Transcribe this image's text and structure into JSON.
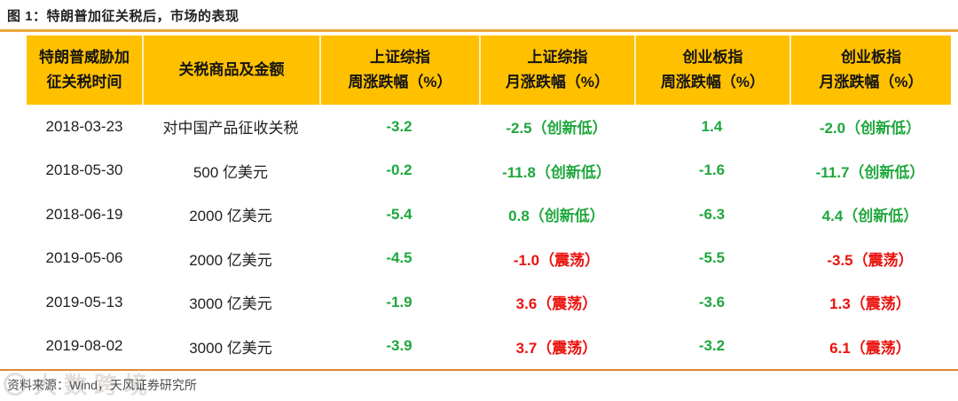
{
  "title": "图 1：特朗普加征关税后，市场的表现",
  "colors": {
    "header_bg": "#FFC000",
    "top_rule": "#E9A838",
    "bottom_rule": "#DE8A33",
    "green": "#1FA73C",
    "red": "#EA130E",
    "text_dark": "#1F1F1F",
    "footer_gray": "#4F4F4F"
  },
  "table": {
    "headers": [
      {
        "lines": [
          "特朗普威胁加",
          "征关税时间"
        ]
      },
      {
        "lines": [
          "关税商品及金额"
        ]
      },
      {
        "lines": [
          "上证综指",
          "周涨跌幅（%）"
        ]
      },
      {
        "lines": [
          "上证综指",
          "月涨跌幅（%）"
        ]
      },
      {
        "lines": [
          "创业板指",
          "周涨跌幅（%）"
        ]
      },
      {
        "lines": [
          "创业板指",
          "月涨跌幅（%）"
        ]
      }
    ],
    "rows": [
      {
        "date": "2018-03-23",
        "item": "对中国产品征收关税",
        "values": [
          {
            "t": "-3.2",
            "c": "g"
          },
          {
            "t": "-2.5（创新低）",
            "c": "g"
          },
          {
            "t": "1.4",
            "c": "g"
          },
          {
            "t": "-2.0（创新低）",
            "c": "g"
          }
        ]
      },
      {
        "date": "2018-05-30",
        "item": "500 亿美元",
        "values": [
          {
            "t": "-0.2",
            "c": "g"
          },
          {
            "t": "-11.8（创新低）",
            "c": "g"
          },
          {
            "t": "-1.6",
            "c": "g"
          },
          {
            "t": "-11.7（创新低）",
            "c": "g"
          }
        ]
      },
      {
        "date": "2018-06-19",
        "item": "2000 亿美元",
        "values": [
          {
            "t": "-5.4",
            "c": "g"
          },
          {
            "t": "0.8（创新低）",
            "c": "g"
          },
          {
            "t": "-6.3",
            "c": "g"
          },
          {
            "t": "4.4（创新低）",
            "c": "g"
          }
        ]
      },
      {
        "date": "2019-05-06",
        "item": "2000 亿美元",
        "values": [
          {
            "t": "-4.5",
            "c": "g"
          },
          {
            "t": "-1.0（震荡）",
            "c": "r"
          },
          {
            "t": "-5.5",
            "c": "g"
          },
          {
            "t": "-3.5（震荡）",
            "c": "r"
          }
        ]
      },
      {
        "date": "2019-05-13",
        "item": "3000 亿美元",
        "values": [
          {
            "t": "-1.9",
            "c": "g"
          },
          {
            "t": "3.6（震荡）",
            "c": "r"
          },
          {
            "t": "-3.6",
            "c": "g"
          },
          {
            "t": "1.3（震荡）",
            "c": "r"
          }
        ]
      },
      {
        "date": "2019-08-02",
        "item": "3000 亿美元",
        "values": [
          {
            "t": "-3.9",
            "c": "g"
          },
          {
            "t": "3.7（震荡）",
            "c": "r"
          },
          {
            "t": "-3.2",
            "c": "g"
          },
          {
            "t": "6.1（震荡）",
            "c": "r"
          }
        ]
      }
    ]
  },
  "footer": {
    "source": "资料来源：Wind，天风证券研究所"
  },
  "watermark": {
    "text": "大数跨境"
  }
}
